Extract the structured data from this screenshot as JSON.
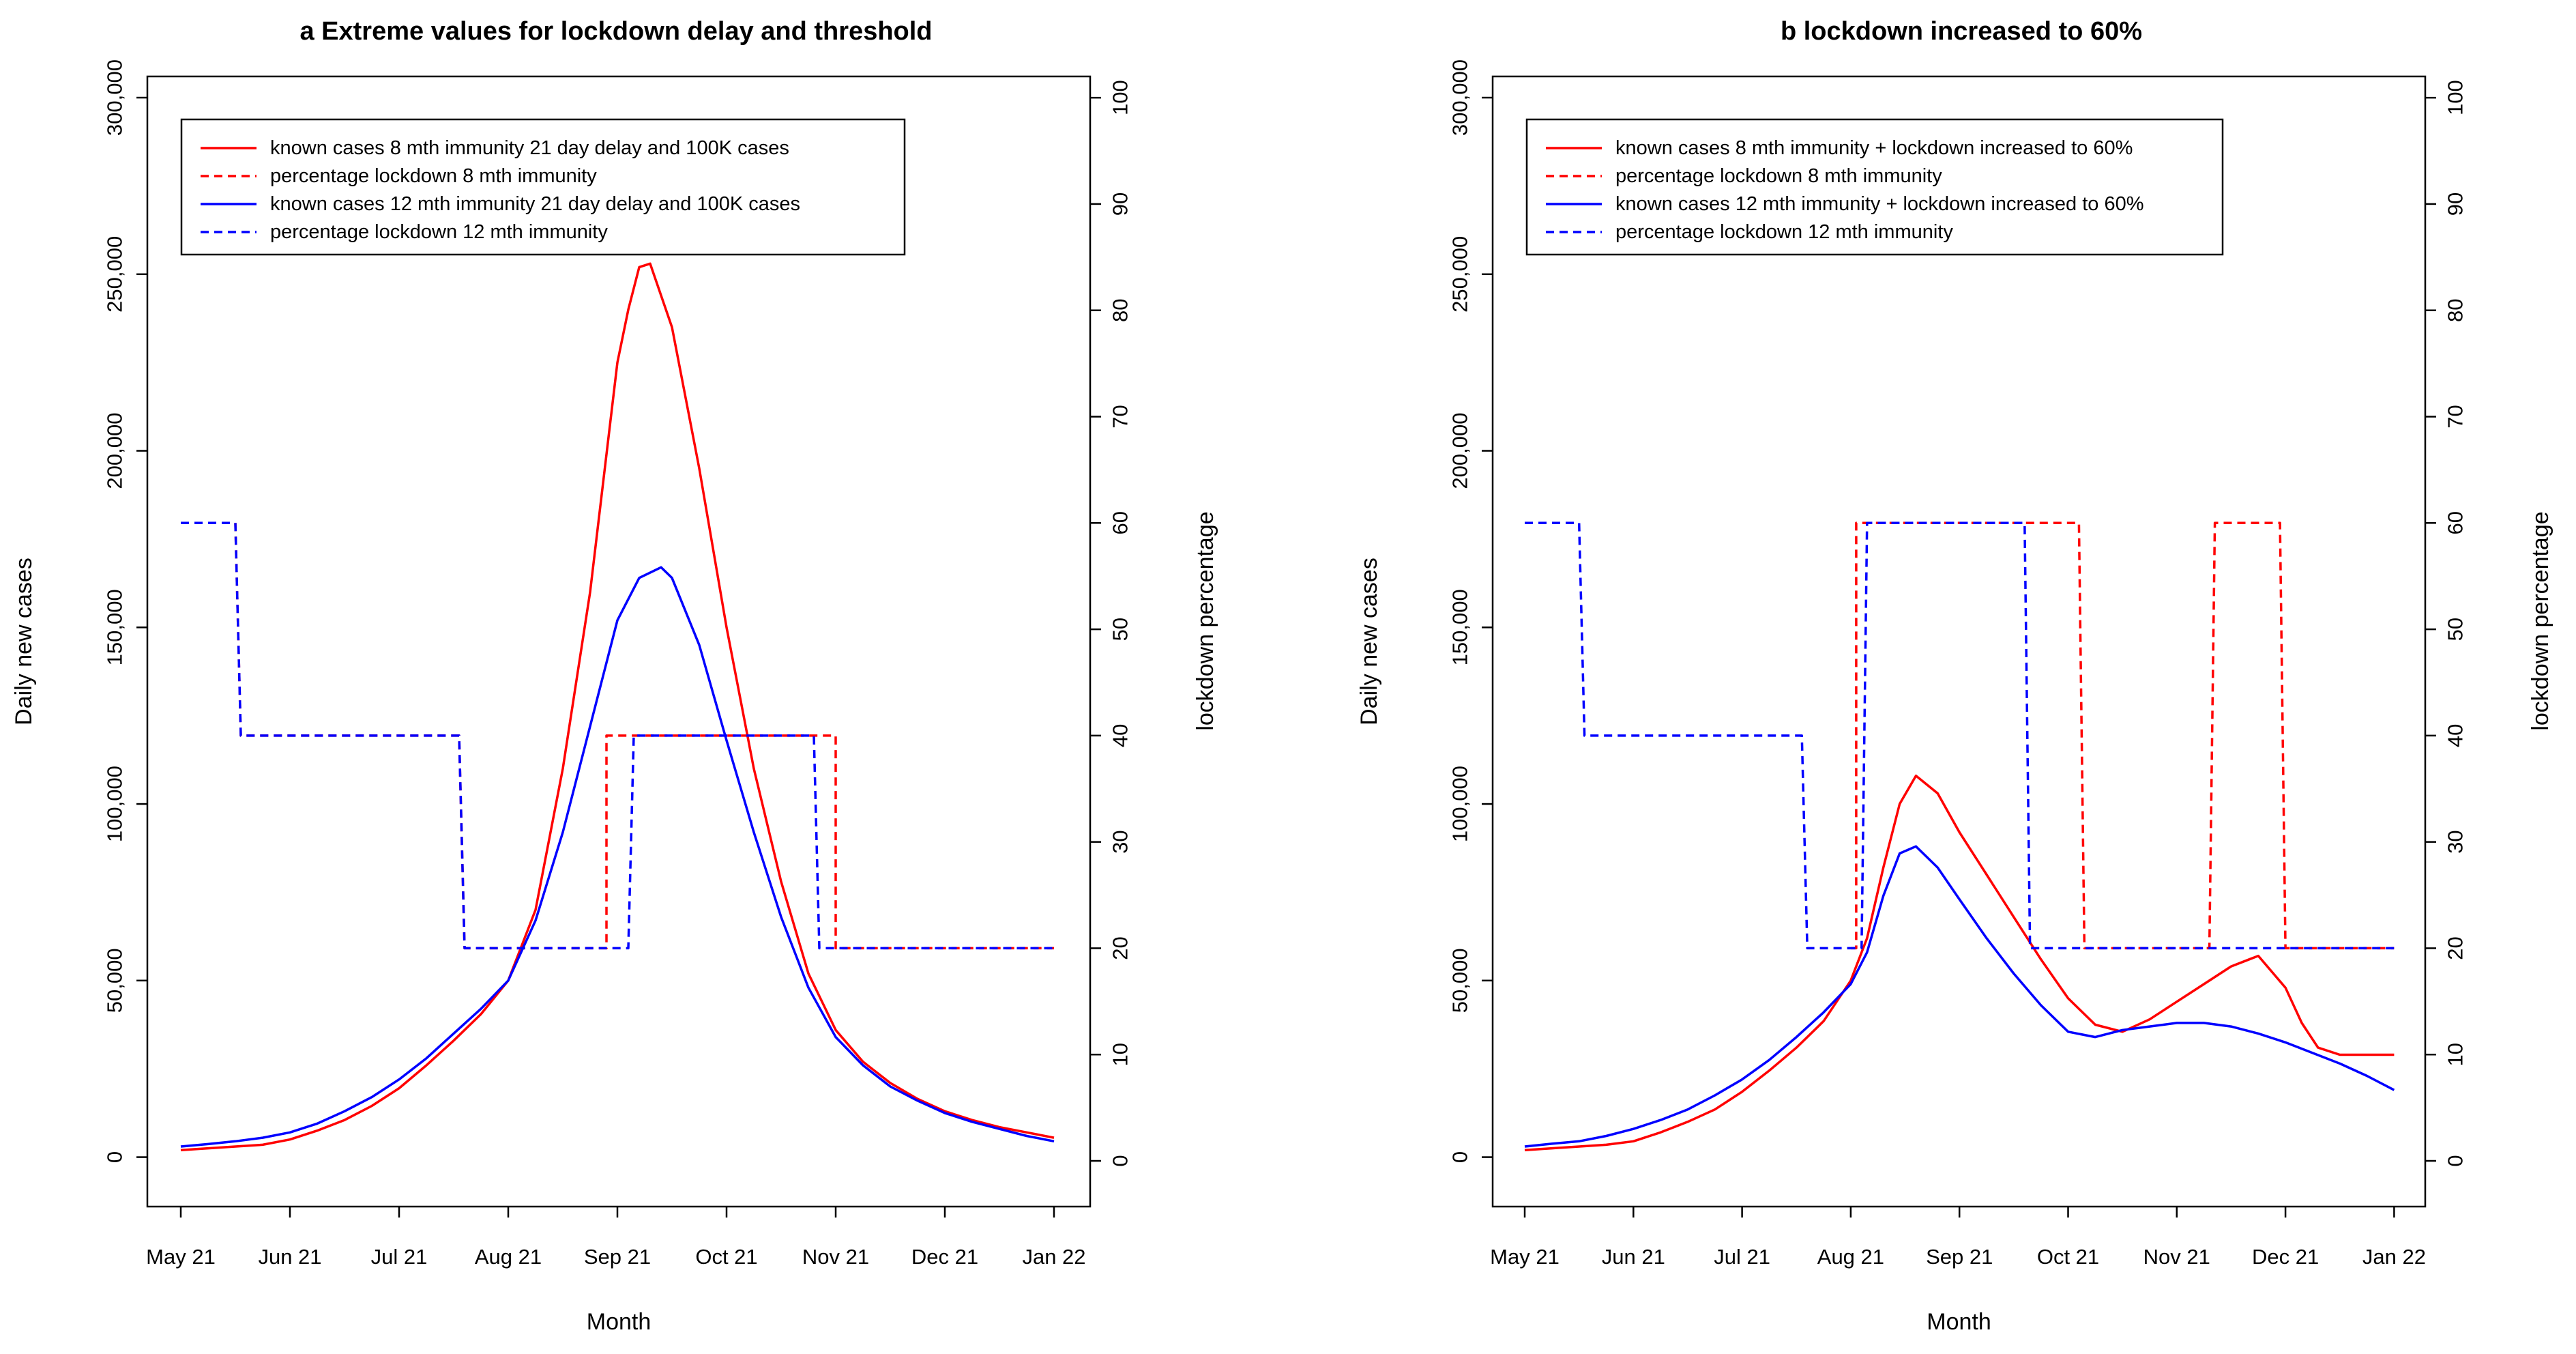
{
  "chart_data": [
    {
      "type": "line",
      "title": "a Extreme values for lockdown delay and threshold",
      "xlabel": "Month",
      "ylabel": "Daily new cases",
      "y2label": "lockdown percentage",
      "x_tick_labels": [
        "May 21",
        "Jun 21",
        "Jul 21",
        "Aug 21",
        "Sep 21",
        "Oct 21",
        "Nov 21",
        "Dec 21",
        "Jan 22"
      ],
      "y_ticks": [
        0,
        50000,
        100000,
        150000,
        200000,
        250000,
        300000
      ],
      "y_tick_labels": [
        "0",
        "50,000",
        "100,000",
        "150,000",
        "200,000",
        "250,000",
        "300,000"
      ],
      "ylim": [
        -14000,
        306000
      ],
      "y2_ticks": [
        0,
        10,
        20,
        30,
        40,
        50,
        60,
        70,
        80,
        90,
        100
      ],
      "y2_tick_labels": [
        "0",
        "10",
        "20",
        "30",
        "40",
        "50",
        "60",
        "70",
        "80",
        "90",
        "100"
      ],
      "y2lim": [
        -4.3,
        102
      ],
      "legend_position": "top-left",
      "series": [
        {
          "name": "known cases 8 mth immunity 21 day delay and 100K cases",
          "axis": "left",
          "color": "#ff0000",
          "dash": "solid",
          "x": [
            0,
            0.25,
            0.5,
            0.75,
            1,
            1.25,
            1.5,
            1.75,
            2,
            2.25,
            2.5,
            2.75,
            3,
            3.25,
            3.5,
            3.75,
            4,
            4.1,
            4.2,
            4.3,
            4.5,
            4.75,
            5,
            5.25,
            5.5,
            5.75,
            6,
            6.25,
            6.5,
            6.75,
            7,
            7.25,
            7.5,
            7.75,
            8
          ],
          "y": [
            2000,
            2500,
            3000,
            3500,
            5000,
            7500,
            10500,
            14500,
            19500,
            26000,
            33000,
            40500,
            50000,
            70000,
            110000,
            160000,
            225000,
            240000,
            252000,
            253000,
            235000,
            195000,
            150000,
            110000,
            78000,
            52000,
            36000,
            27000,
            21000,
            16500,
            13000,
            10500,
            8500,
            7000,
            5500
          ]
        },
        {
          "name": "percentage lockdown 8 mth immunity",
          "axis": "right",
          "color": "#ff0000",
          "dash": "dashed",
          "x": [
            3.9,
            3.9,
            4.0,
            4.0,
            4.0,
            4.0,
            6.0,
            6.0,
            8.0
          ],
          "y": [
            20,
            40,
            40,
            40,
            40,
            40,
            40,
            20,
            20
          ],
          "x_pre": [
            0.0,
            0.5,
            0.5,
            0.55,
            2.55,
            2.55,
            2.6,
            3.9
          ],
          "y_pre": [
            60,
            60,
            60,
            40,
            40,
            40,
            20,
            20
          ]
        },
        {
          "name": "known cases 12 mth immunity 21 day delay and 100K cases",
          "axis": "left",
          "color": "#0000ff",
          "dash": "solid",
          "x": [
            0,
            0.25,
            0.5,
            0.75,
            1,
            1.25,
            1.5,
            1.75,
            2,
            2.25,
            2.5,
            2.75,
            3,
            3.25,
            3.5,
            3.75,
            4,
            4.2,
            4.4,
            4.5,
            4.75,
            5,
            5.25,
            5.5,
            5.75,
            6,
            6.25,
            6.5,
            6.75,
            7,
            7.25,
            7.5,
            7.75,
            8
          ],
          "y": [
            3000,
            3700,
            4500,
            5500,
            7000,
            9500,
            13000,
            17000,
            22000,
            28000,
            35000,
            42000,
            50000,
            67000,
            92000,
            122000,
            152000,
            164000,
            167000,
            164000,
            145000,
            118000,
            92000,
            68000,
            48000,
            34000,
            26000,
            20000,
            16000,
            12500,
            10000,
            8000,
            6000,
            4500
          ]
        },
        {
          "name": "percentage lockdown 12 mth immunity",
          "axis": "right",
          "color": "#0000ff",
          "dash": "dashed",
          "x": [
            0,
            0.5,
            0.55,
            2.55,
            2.6,
            4.1,
            4.15,
            5.8,
            5.85,
            8
          ],
          "y": [
            60,
            60,
            40,
            40,
            20,
            20,
            40,
            40,
            20,
            20
          ]
        }
      ]
    },
    {
      "type": "line",
      "title": "b lockdown increased to 60%",
      "xlabel": "Month",
      "ylabel": "Daily new cases",
      "y2label": "lockdown percentage",
      "x_tick_labels": [
        "May 21",
        "Jun 21",
        "Jul 21",
        "Aug 21",
        "Sep 21",
        "Oct 21",
        "Nov 21",
        "Dec 21",
        "Jan 22"
      ],
      "y_ticks": [
        0,
        50000,
        100000,
        150000,
        200000,
        250000,
        300000
      ],
      "y_tick_labels": [
        "0",
        "50,000",
        "100,000",
        "150,000",
        "200,000",
        "250,000",
        "300,000"
      ],
      "ylim": [
        -14000,
        306000
      ],
      "y2_ticks": [
        0,
        10,
        20,
        30,
        40,
        50,
        60,
        70,
        80,
        90,
        100
      ],
      "y2_tick_labels": [
        "0",
        "10",
        "20",
        "30",
        "40",
        "50",
        "60",
        "70",
        "80",
        "90",
        "100"
      ],
      "y2lim": [
        -4.3,
        102
      ],
      "legend_position": "top-left",
      "series": [
        {
          "name": "known cases 8 mth immunity + lockdown increased to 60%",
          "axis": "left",
          "color": "#ff0000",
          "dash": "solid",
          "x": [
            0,
            0.25,
            0.5,
            0.75,
            1,
            1.25,
            1.5,
            1.75,
            2,
            2.25,
            2.5,
            2.75,
            3,
            3.15,
            3.3,
            3.45,
            3.6,
            3.8,
            4,
            4.25,
            4.5,
            4.75,
            5,
            5.25,
            5.5,
            5.75,
            6,
            6.25,
            6.5,
            6.75,
            7,
            7.15,
            7.3,
            7.5,
            7.75,
            8
          ],
          "y": [
            2000,
            2500,
            3000,
            3500,
            4500,
            7000,
            10000,
            13500,
            18500,
            24500,
            31000,
            38500,
            50000,
            62000,
            82000,
            100000,
            108000,
            103000,
            92000,
            80000,
            68000,
            56000,
            45000,
            37500,
            35500,
            39000,
            44000,
            49000,
            54000,
            57000,
            48000,
            38000,
            31000,
            29000,
            29000,
            29000
          ]
        },
        {
          "name": "percentage lockdown 8 mth immunity",
          "axis": "right",
          "color": "#ff0000",
          "dash": "dashed",
          "x": [
            3.0,
            3.0,
            3.05,
            3.05,
            3.1,
            5.1,
            5.15,
            6.3,
            6.35,
            6.95,
            7.0,
            8.0
          ],
          "y": [
            20,
            20,
            20,
            60,
            60,
            60,
            20,
            20,
            60,
            60,
            20,
            20
          ]
        },
        {
          "name": "known cases 12 mth immunity + lockdown increased to 60%",
          "axis": "left",
          "color": "#0000ff",
          "dash": "solid",
          "x": [
            0,
            0.25,
            0.5,
            0.75,
            1,
            1.25,
            1.5,
            1.75,
            2,
            2.25,
            2.5,
            2.75,
            3,
            3.15,
            3.3,
            3.45,
            3.6,
            3.8,
            4,
            4.25,
            4.5,
            4.75,
            5,
            5.25,
            5.5,
            5.75,
            6,
            6.25,
            6.5,
            6.75,
            7,
            7.25,
            7.5,
            7.75,
            8
          ],
          "y": [
            3000,
            3800,
            4500,
            6000,
            8000,
            10500,
            13500,
            17500,
            22000,
            27500,
            34000,
            41000,
            49000,
            58000,
            74000,
            86000,
            88000,
            82000,
            73000,
            62000,
            52000,
            43000,
            35500,
            34000,
            36000,
            37000,
            38000,
            38000,
            37000,
            35000,
            32500,
            29500,
            26500,
            23000,
            19000
          ]
        },
        {
          "name": "percentage lockdown 12 mth immunity",
          "axis": "right",
          "color": "#0000ff",
          "dash": "dashed",
          "x": [
            0,
            0.5,
            0.55,
            2.55,
            2.6,
            3.1,
            3.15,
            4.6,
            4.65,
            8
          ],
          "y": [
            60,
            60,
            40,
            40,
            20,
            20,
            60,
            60,
            20,
            20
          ]
        }
      ]
    }
  ]
}
